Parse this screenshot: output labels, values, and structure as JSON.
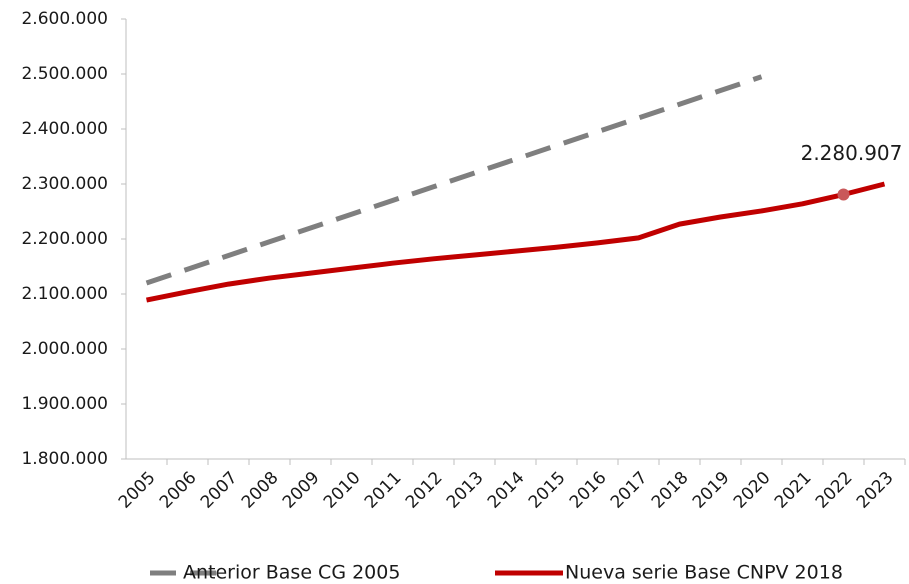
{
  "chart_data": {
    "type": "line",
    "categories": [
      "2005",
      "2006",
      "2007",
      "2008",
      "2009",
      "2010",
      "2011",
      "2012",
      "2013",
      "2014",
      "2015",
      "2016",
      "2017",
      "2018",
      "2019",
      "2020",
      "2021",
      "2022",
      "2023"
    ],
    "series": [
      {
        "name": "Anterior Base CG 2005",
        "color": "#7f7f7f",
        "dashed": true,
        "values": [
          2120000,
          2145000,
          2170000,
          2195000,
          2220000,
          2245000,
          2270000,
          2295000,
          2320000,
          2345000,
          2370000,
          2395000,
          2420000,
          2445000,
          2470000,
          2495000,
          null,
          null,
          null
        ]
      },
      {
        "name": "Nueva serie Base CNPV 2018",
        "color": "#c00000",
        "marker_color": "#c9585a",
        "values": [
          2089000,
          2104000,
          2118000,
          2129000,
          2138000,
          2147000,
          2156000,
          2164000,
          2171000,
          2178000,
          2185000,
          2193000,
          2202000,
          2227000,
          2240000,
          2251000,
          2264000,
          2280907,
          2300000
        ],
        "value_labels": [
          null,
          null,
          null,
          null,
          null,
          null,
          null,
          null,
          null,
          null,
          null,
          null,
          null,
          null,
          null,
          null,
          null,
          "2.280.907",
          null
        ]
      }
    ],
    "ylim": [
      1800000,
      2600000
    ],
    "yticks": [
      {
        "value": 1800000,
        "label": "1.800.000"
      },
      {
        "value": 1900000,
        "label": "1.900.000"
      },
      {
        "value": 2000000,
        "label": "2.000.000"
      },
      {
        "value": 2100000,
        "label": "2.100.000"
      },
      {
        "value": 2200000,
        "label": "2.200.000"
      },
      {
        "value": 2300000,
        "label": "2.300.000"
      },
      {
        "value": 2400000,
        "label": "2.400.000"
      },
      {
        "value": 2500000,
        "label": "2.500.000"
      },
      {
        "value": 2600000,
        "label": "2.600.000"
      }
    ],
    "grid": false,
    "legend": "bottom"
  }
}
